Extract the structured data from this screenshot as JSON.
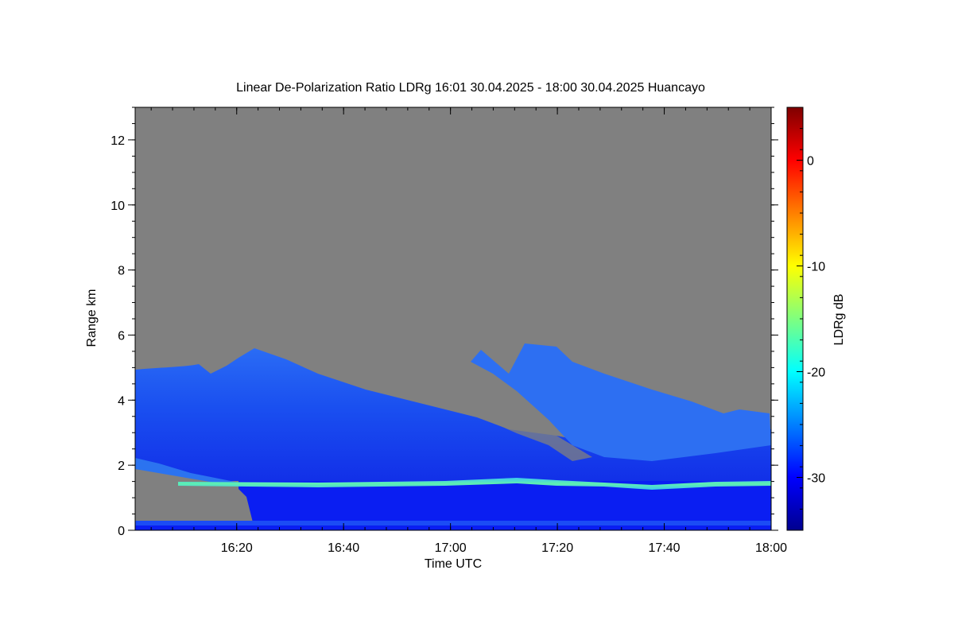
{
  "chart_data": {
    "type": "heatmap",
    "title": "Linear De-Polarization Ratio LDRg   16:01 30.04.2025 - 18:00 30.04.2025 Huancayo",
    "xlabel": "Time UTC",
    "ylabel": "Range km",
    "colorbar_label": "LDRg dB",
    "x_range_minutes_utc": [
      "16:01",
      "18:00"
    ],
    "x_ticks": [
      "16:20",
      "16:40",
      "17:00",
      "17:20",
      "17:40",
      "18:00"
    ],
    "y_range": [
      0,
      13
    ],
    "y_ticks": [
      "0",
      "2",
      "4",
      "6",
      "8",
      "10",
      "12"
    ],
    "colorbar_range": [
      -35,
      5
    ],
    "colorbar_ticks": [
      "0",
      "-10",
      "-20",
      "-30"
    ],
    "no_data_color": "#808080",
    "features": [
      {
        "name": "aerosol-layer",
        "ldr_db": -28,
        "time_start": "16:01",
        "time_end": "18:00",
        "top_km_start": 4.9,
        "top_km_end": 3.0
      },
      {
        "name": "elevated-layer",
        "ldr_db": -25,
        "time_start": "17:06",
        "time_end": "17:54",
        "top_km": 5.6
      },
      {
        "name": "boundary-layer-line",
        "ldr_db": -21,
        "altitude_km": 1.4,
        "time_start": "16:10",
        "time_end": "18:00"
      },
      {
        "name": "near-surface-layer",
        "ldr_db": -32,
        "altitude_km": [
          0,
          1.35
        ]
      }
    ]
  }
}
